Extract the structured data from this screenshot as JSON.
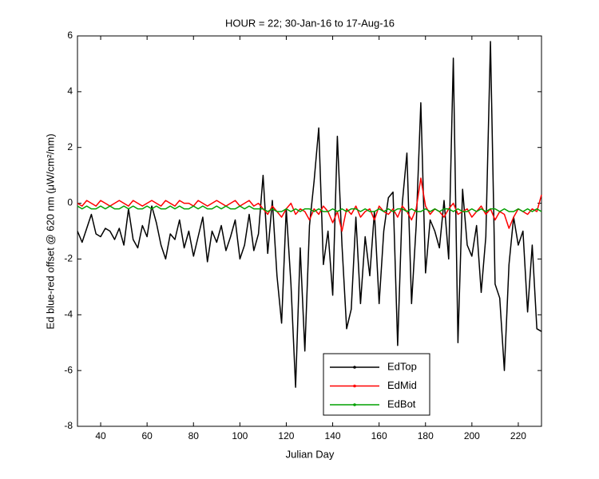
{
  "chart_data": {
    "type": "line",
    "title": "HOUR = 22; 30-Jan-16 to 17-Aug-16",
    "xlabel": "Julian Day",
    "ylabel": "Ed blue-red offset @ 620 nm (μW/cm²/nm)",
    "xlim": [
      30,
      230
    ],
    "xticks": [
      40,
      60,
      80,
      100,
      120,
      140,
      160,
      180,
      200,
      220
    ],
    "ylim": [
      -8,
      6
    ],
    "yticks": [
      -8,
      -6,
      -4,
      -2,
      0,
      2,
      4,
      6
    ],
    "legend": "lower center",
    "x": [
      30,
      32,
      34,
      36,
      38,
      40,
      42,
      44,
      46,
      48,
      50,
      52,
      54,
      56,
      58,
      60,
      62,
      64,
      66,
      68,
      70,
      72,
      74,
      76,
      78,
      80,
      82,
      84,
      86,
      88,
      90,
      92,
      94,
      96,
      98,
      100,
      102,
      104,
      106,
      108,
      110,
      112,
      114,
      116,
      118,
      120,
      122,
      124,
      126,
      128,
      130,
      132,
      134,
      136,
      138,
      140,
      142,
      144,
      146,
      148,
      150,
      152,
      154,
      156,
      158,
      160,
      162,
      164,
      166,
      168,
      170,
      172,
      174,
      176,
      178,
      180,
      182,
      184,
      186,
      188,
      190,
      192,
      194,
      196,
      198,
      200,
      202,
      204,
      206,
      208,
      210,
      212,
      214,
      216,
      218,
      220,
      222,
      224,
      226,
      228,
      230
    ],
    "series": [
      {
        "name": "EdTop",
        "color": "#000000",
        "values": [
          -1.0,
          -1.4,
          -0.9,
          -0.4,
          -1.1,
          -1.2,
          -0.9,
          -1.0,
          -1.3,
          -0.9,
          -1.5,
          -0.2,
          -1.3,
          -1.6,
          -0.8,
          -1.2,
          -0.1,
          -0.7,
          -1.5,
          -2.0,
          -1.1,
          -1.3,
          -0.6,
          -1.6,
          -1.0,
          -1.9,
          -1.2,
          -0.5,
          -2.1,
          -1.0,
          -1.4,
          -0.8,
          -1.7,
          -1.2,
          -0.6,
          -2.0,
          -1.5,
          -0.4,
          -1.7,
          -1.1,
          1.0,
          -1.8,
          0.1,
          -2.6,
          -4.3,
          -0.2,
          -2.9,
          -6.6,
          -1.6,
          -5.3,
          -0.8,
          0.8,
          2.7,
          -2.2,
          -1.0,
          -3.3,
          2.4,
          -1.5,
          -4.5,
          -3.8,
          -0.5,
          -3.6,
          -1.2,
          -2.6,
          -0.3,
          -3.6,
          -1.0,
          0.2,
          0.4,
          -5.1,
          0.0,
          1.8,
          -3.6,
          -0.8,
          3.6,
          -2.5,
          -0.6,
          -1.0,
          -1.6,
          0.1,
          -2.0,
          5.2,
          -5.0,
          0.5,
          -1.5,
          -1.9,
          -0.8,
          -3.2,
          -1.2,
          5.8,
          -2.9,
          -3.4,
          -6.0,
          -2.2,
          -0.5,
          -1.5,
          -1.0,
          -3.9,
          -1.5,
          -4.5,
          -4.6
        ]
      },
      {
        "name": "EdMid",
        "color": "#ff0000",
        "values": [
          0.0,
          -0.1,
          0.1,
          0.0,
          -0.1,
          0.1,
          0.0,
          -0.1,
          0.0,
          0.1,
          0.0,
          -0.1,
          0.1,
          0.0,
          -0.1,
          0.0,
          0.1,
          0.0,
          -0.1,
          0.1,
          0.0,
          -0.1,
          0.1,
          0.0,
          0.0,
          -0.1,
          0.1,
          0.0,
          -0.1,
          0.0,
          0.1,
          0.0,
          -0.1,
          0.0,
          0.1,
          -0.1,
          0.0,
          0.1,
          -0.1,
          0.0,
          -0.2,
          -0.4,
          -0.1,
          -0.3,
          -0.5,
          -0.2,
          0.0,
          -0.4,
          -0.2,
          -0.3,
          -0.6,
          -0.2,
          -0.4,
          -0.1,
          -0.3,
          -0.7,
          -0.3,
          -1.0,
          -0.2,
          -0.4,
          -0.1,
          -0.5,
          -0.3,
          -0.2,
          -0.6,
          -0.1,
          -0.3,
          -0.4,
          -0.2,
          -0.5,
          -0.1,
          -0.3,
          -0.6,
          -0.2,
          0.9,
          -0.1,
          -0.4,
          -0.2,
          -0.3,
          -0.5,
          -0.2,
          0.0,
          -0.4,
          -0.3,
          -0.2,
          -0.5,
          -0.3,
          -0.1,
          -0.4,
          -0.2,
          -0.6,
          -0.3,
          -0.4,
          -0.9,
          -0.5,
          -0.2,
          -0.3,
          -0.4,
          -0.2,
          -0.3,
          0.3
        ]
      },
      {
        "name": "EdBot",
        "color": "#00a000",
        "values": [
          -0.1,
          -0.2,
          -0.1,
          -0.2,
          -0.2,
          -0.1,
          -0.2,
          -0.1,
          -0.2,
          -0.2,
          -0.1,
          -0.2,
          -0.1,
          -0.2,
          -0.2,
          -0.1,
          -0.2,
          -0.1,
          -0.2,
          -0.2,
          -0.1,
          -0.2,
          -0.1,
          -0.2,
          -0.2,
          -0.1,
          -0.2,
          -0.1,
          -0.2,
          -0.2,
          -0.1,
          -0.2,
          -0.1,
          -0.2,
          -0.2,
          -0.1,
          -0.2,
          -0.1,
          -0.2,
          -0.2,
          -0.2,
          -0.3,
          -0.2,
          -0.3,
          -0.3,
          -0.2,
          -0.3,
          -0.2,
          -0.3,
          -0.2,
          -0.2,
          -0.3,
          -0.2,
          -0.3,
          -0.3,
          -0.2,
          -0.3,
          -0.2,
          -0.3,
          -0.2,
          -0.2,
          -0.3,
          -0.2,
          -0.3,
          -0.3,
          -0.2,
          -0.3,
          -0.2,
          -0.3,
          -0.2,
          -0.2,
          -0.3,
          -0.2,
          -0.3,
          -0.3,
          -0.2,
          -0.3,
          -0.2,
          -0.3,
          -0.2,
          -0.2,
          -0.3,
          -0.2,
          -0.3,
          -0.3,
          -0.2,
          -0.3,
          -0.2,
          -0.3,
          -0.2,
          -0.2,
          -0.3,
          -0.2,
          -0.3,
          -0.3,
          -0.2,
          -0.3,
          -0.2,
          -0.3,
          -0.2,
          -0.3
        ]
      }
    ]
  }
}
